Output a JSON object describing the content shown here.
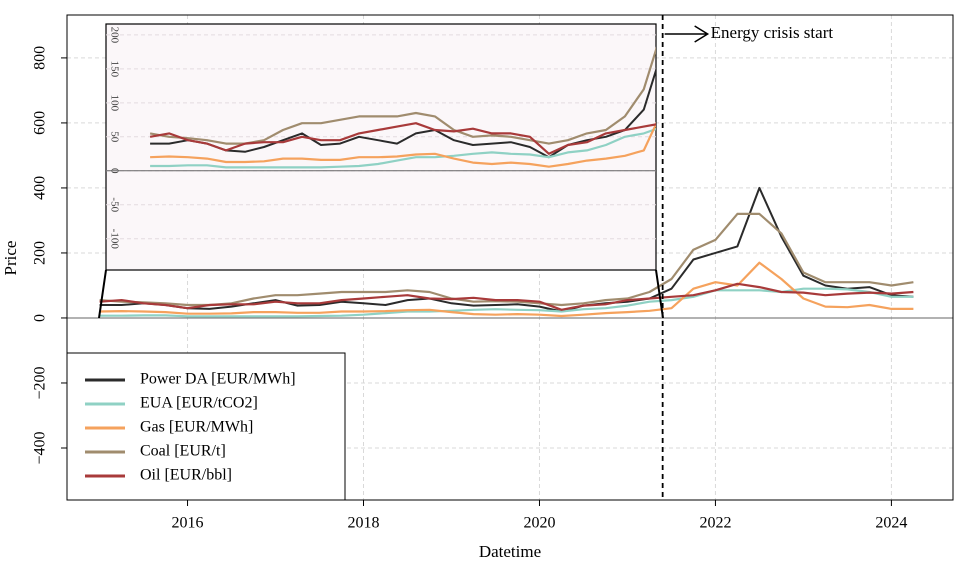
{
  "chart_data": [
    {
      "type": "line",
      "xlabel": "Datetime",
      "ylabel": "Price",
      "xlim": [
        2014.63,
        2024.7
      ],
      "ylim": [
        -560,
        932
      ],
      "xticks": [
        2016,
        2018,
        2020,
        2022,
        2024
      ],
      "yticks": [
        {
          "value": -400,
          "label": "−400"
        },
        {
          "value": -200,
          "label": "−200"
        },
        0,
        200,
        400,
        600,
        800
      ],
      "grid": true,
      "legend": "lower left",
      "annotation": {
        "text": "Energy crisis start",
        "x": 2021.4
      },
      "x": [
        2015,
        2015.25,
        2015.5,
        2015.75,
        2016,
        2016.25,
        2016.5,
        2016.75,
        2017,
        2017.25,
        2017.5,
        2017.75,
        2018,
        2018.25,
        2018.5,
        2018.75,
        2019,
        2019.25,
        2019.5,
        2019.75,
        2020,
        2020.25,
        2020.5,
        2020.75,
        2021,
        2021.25,
        2021.5,
        2021.75,
        2022,
        2022.25,
        2022.5,
        2022.75,
        2023,
        2023.25,
        2023.5,
        2023.75,
        2024,
        2024.25
      ],
      "series": [
        {
          "name": "Power DA [EUR/MWh]",
          "color": "#2b2b2b",
          "values": [
            40,
            40,
            45,
            40,
            30,
            28,
            35,
            45,
            55,
            38,
            40,
            50,
            45,
            40,
            55,
            60,
            45,
            38,
            40,
            42,
            35,
            20,
            38,
            45,
            50,
            60,
            90,
            180,
            200,
            220,
            400,
            250,
            130,
            100,
            90,
            95,
            70,
            65
          ]
        },
        {
          "name": "EUA [EUR/tCO2]",
          "color": "#8fd1c4",
          "values": [
            7,
            7,
            8,
            8,
            5,
            5,
            5,
            5,
            5,
            5,
            6,
            7,
            10,
            15,
            20,
            20,
            22,
            25,
            27,
            25,
            24,
            20,
            27,
            30,
            38,
            50,
            55,
            65,
            85,
            85,
            85,
            80,
            90,
            90,
            88,
            80,
            65,
            65
          ]
        },
        {
          "name": "Gas [EUR/MWh]",
          "color": "#f5a25d",
          "values": [
            20,
            21,
            20,
            18,
            13,
            13,
            14,
            18,
            18,
            16,
            16,
            20,
            20,
            21,
            24,
            25,
            18,
            12,
            10,
            12,
            10,
            6,
            10,
            15,
            18,
            22,
            30,
            90,
            110,
            100,
            170,
            120,
            60,
            35,
            33,
            40,
            28,
            28
          ]
        },
        {
          "name": "Coal [EUR/t]",
          "color": "#a08c6e",
          "values": [
            55,
            50,
            48,
            45,
            40,
            40,
            45,
            60,
            70,
            70,
            75,
            80,
            80,
            80,
            85,
            80,
            60,
            50,
            52,
            50,
            45,
            40,
            45,
            55,
            60,
            80,
            120,
            210,
            240,
            320,
            320,
            260,
            140,
            110,
            110,
            110,
            100,
            110
          ]
        },
        {
          "name": "Oil [EUR/bbl]",
          "color": "#a83a3a",
          "values": [
            50,
            55,
            45,
            40,
            30,
            40,
            42,
            42,
            50,
            45,
            45,
            55,
            60,
            65,
            70,
            60,
            58,
            62,
            55,
            55,
            50,
            25,
            38,
            42,
            55,
            60,
            65,
            70,
            85,
            105,
            95,
            80,
            78,
            70,
            75,
            78,
            75,
            80
          ]
        }
      ]
    },
    {
      "type": "inset",
      "xlim": [
        2014.42,
        2021.66
      ],
      "ylim": [
        -146,
        216
      ],
      "yticks": [
        {
          "value": -100,
          "label": "-100"
        },
        {
          "value": -50,
          "label": "-50"
        },
        0,
        50,
        100,
        150,
        200
      ]
    }
  ]
}
